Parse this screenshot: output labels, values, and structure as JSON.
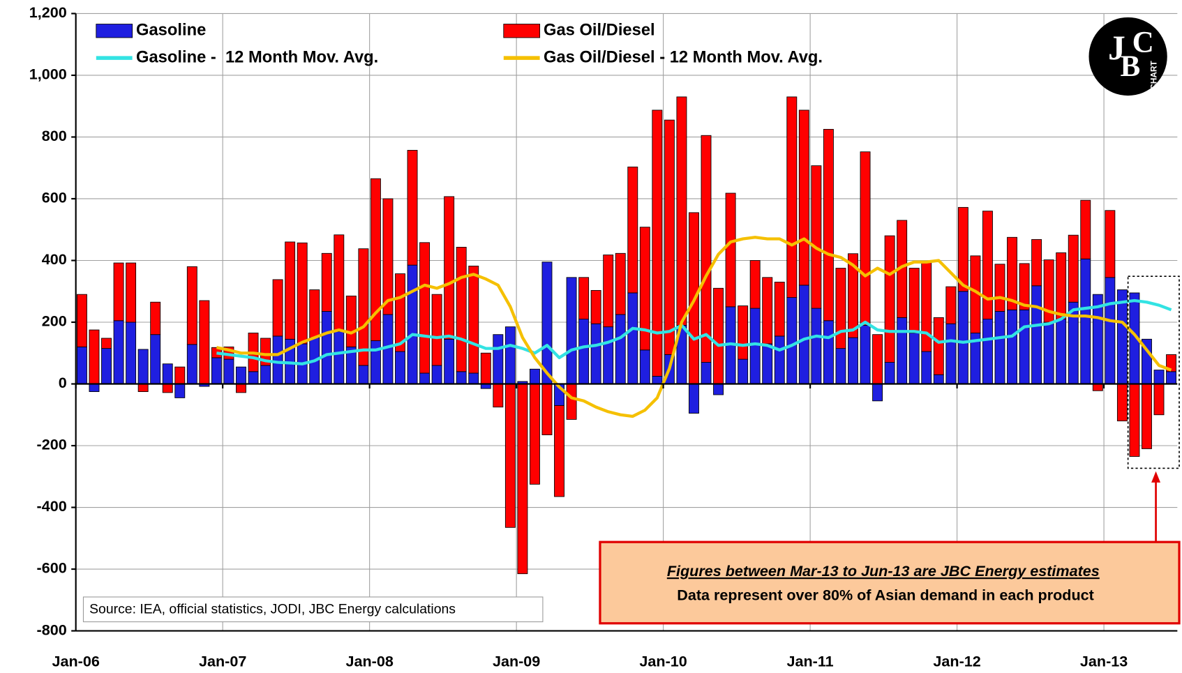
{
  "chart_data": {
    "type": "bar",
    "stacked": true,
    "categories": [
      "Jan-06",
      null,
      null,
      null,
      null,
      null,
      null,
      null,
      null,
      null,
      null,
      null,
      "Jan-07",
      null,
      null,
      null,
      null,
      null,
      null,
      null,
      null,
      null,
      null,
      null,
      "Jan-08",
      null,
      null,
      null,
      null,
      null,
      null,
      null,
      null,
      null,
      null,
      null,
      "Jan-09",
      null,
      null,
      null,
      null,
      null,
      null,
      null,
      null,
      null,
      null,
      null,
      "Jan-10",
      null,
      null,
      null,
      null,
      null,
      null,
      null,
      null,
      null,
      null,
      null,
      "Jan-11",
      null,
      null,
      null,
      null,
      null,
      null,
      null,
      null,
      null,
      null,
      null,
      "Jan-12",
      null,
      null,
      null,
      null,
      null,
      null,
      null,
      null,
      null,
      null,
      null,
      "Jan-13",
      null,
      null,
      null,
      null,
      null
    ],
    "series": [
      {
        "name": "Gasoline",
        "type": "bar",
        "color": "#1f1fe0",
        "values": [
          120,
          -25,
          115,
          205,
          200,
          112,
          160,
          65,
          -45,
          128,
          -8,
          85,
          80,
          55,
          40,
          60,
          155,
          145,
          130,
          150,
          235,
          170,
          120,
          60,
          140,
          225,
          105,
          385,
          35,
          60,
          145,
          40,
          35,
          -15,
          160,
          185,
          8,
          48,
          395,
          -70,
          345,
          210,
          195,
          185,
          225,
          295,
          110,
          25,
          95,
          190,
          -95,
          70,
          -35,
          250,
          80,
          245,
          130,
          155,
          280,
          320,
          245,
          205,
          115,
          150,
          190,
          -55,
          70,
          215,
          165,
          105,
          30,
          195,
          300,
          165,
          210,
          235,
          240,
          240,
          318,
          200,
          210,
          265,
          405,
          290,
          345,
          305,
          295,
          145,
          45,
          40
        ]
      },
      {
        "name": "Gas Oil/Diesel",
        "type": "bar",
        "color": "#ff0000",
        "values": [
          170,
          175,
          33,
          187,
          192,
          -25,
          105,
          -28,
          55,
          252,
          270,
          33,
          40,
          -28,
          125,
          88,
          183,
          315,
          327,
          155,
          188,
          313,
          165,
          378,
          525,
          375,
          252,
          372,
          423,
          230,
          462,
          403,
          347,
          100,
          -75,
          -465,
          -615,
          -325,
          -165,
          -295,
          -115,
          135,
          108,
          233,
          198,
          408,
          398,
          862,
          760,
          740,
          555,
          735,
          310,
          368,
          173,
          155,
          215,
          175,
          650,
          567,
          462,
          620,
          260,
          272,
          562,
          160,
          410,
          315,
          210,
          293,
          185,
          120,
          272,
          250,
          350,
          153,
          235,
          150,
          150,
          202,
          215,
          217,
          190,
          -22,
          217,
          -120,
          -235,
          -210,
          -100,
          55
        ]
      },
      {
        "name": "Gasoline -  12 Month Mov. Avg.",
        "type": "line",
        "color": "#33e3e3",
        "values": [
          null,
          null,
          null,
          null,
          null,
          null,
          null,
          null,
          null,
          null,
          null,
          100,
          95,
          90,
          85,
          75,
          70,
          68,
          65,
          75,
          95,
          100,
          105,
          110,
          110,
          120,
          130,
          160,
          155,
          150,
          155,
          145,
          130,
          115,
          115,
          125,
          115,
          100,
          125,
          85,
          110,
          120,
          125,
          135,
          150,
          180,
          175,
          165,
          170,
          190,
          145,
          160,
          125,
          130,
          125,
          130,
          125,
          110,
          125,
          145,
          155,
          150,
          170,
          175,
          200,
          175,
          170,
          170,
          170,
          165,
          135,
          140,
          135,
          140,
          145,
          150,
          155,
          185,
          190,
          195,
          210,
          240,
          245,
          250,
          260,
          265,
          270,
          265,
          255,
          240
        ]
      },
      {
        "name": "Gas Oil/Diesel - 12 Month Mov. Avg.",
        "type": "line",
        "color": "#f5c000",
        "values": [
          null,
          null,
          null,
          null,
          null,
          null,
          null,
          null,
          null,
          null,
          null,
          118,
          110,
          100,
          100,
          95,
          95,
          115,
          135,
          150,
          165,
          175,
          165,
          185,
          230,
          270,
          280,
          300,
          320,
          310,
          325,
          345,
          355,
          340,
          320,
          250,
          150,
          85,
          35,
          -10,
          -45,
          -55,
          -75,
          -90,
          -100,
          -105,
          -85,
          -45,
          50,
          200,
          270,
          350,
          420,
          460,
          470,
          475,
          470,
          470,
          450,
          470,
          440,
          420,
          410,
          385,
          350,
          375,
          355,
          380,
          395,
          395,
          400,
          360,
          320,
          300,
          275,
          280,
          270,
          255,
          250,
          235,
          225,
          220,
          220,
          215,
          205,
          200,
          160,
          110,
          60,
          45
        ]
      }
    ],
    "ylim": [
      -800,
      1200
    ],
    "yticks": [
      -800,
      -600,
      -400,
      -200,
      0,
      200,
      400,
      600,
      800,
      {
        "value": 1000,
        "label": "1,000"
      },
      {
        "value": 1200,
        "label": "1,200"
      }
    ],
    "grid": true,
    "legend": "top",
    "source": "Source: IEA, official statistics, JODI, JBC Energy calculations",
    "note_title": "Figures between Mar-13 to Jun-13 are JBC Energy estimates",
    "note_text": "Data represent over 80% of Asian demand in each product",
    "logo_letters": [
      "J",
      "B",
      "C"
    ],
    "logo_word": "CHART"
  }
}
